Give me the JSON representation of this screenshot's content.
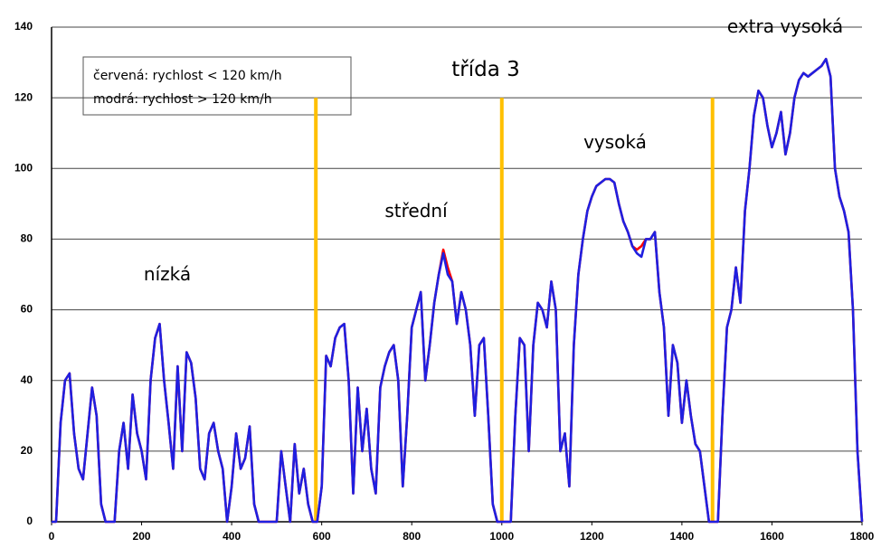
{
  "chart_data": {
    "type": "line",
    "title": "třída 3",
    "legend_lines": [
      "červená: rychlost < 120 km/h",
      "modrá: rychlost > 120 km/h"
    ],
    "phase_labels": [
      "nízká",
      "střední",
      "vysoká",
      "extra vysoká"
    ],
    "phase_lines": {
      "x": [
        587,
        1000,
        1468
      ],
      "top": 120,
      "color": "#ffc000"
    },
    "xlim": [
      0,
      1800
    ],
    "xticks": [
      0,
      200,
      400,
      600,
      800,
      1000,
      1200,
      1400,
      1600,
      1800
    ],
    "ylim": [
      0,
      140
    ],
    "yticks": [
      0,
      20,
      40,
      60,
      80,
      100,
      120,
      140
    ],
    "grid": true,
    "x": [
      0,
      10,
      20,
      30,
      40,
      50,
      60,
      70,
      80,
      90,
      100,
      110,
      120,
      130,
      140,
      150,
      160,
      170,
      180,
      190,
      200,
      210,
      220,
      230,
      240,
      250,
      260,
      270,
      280,
      290,
      300,
      310,
      320,
      330,
      340,
      350,
      360,
      370,
      380,
      390,
      400,
      410,
      420,
      430,
      440,
      450,
      460,
      470,
      480,
      490,
      500,
      510,
      520,
      530,
      540,
      550,
      560,
      570,
      580,
      590,
      600,
      610,
      620,
      630,
      640,
      650,
      660,
      670,
      680,
      690,
      700,
      710,
      720,
      730,
      740,
      750,
      760,
      770,
      780,
      790,
      800,
      810,
      820,
      830,
      840,
      850,
      860,
      870,
      880,
      890,
      900,
      910,
      920,
      930,
      940,
      950,
      960,
      970,
      980,
      990,
      1000,
      1010,
      1020,
      1030,
      1040,
      1050,
      1060,
      1070,
      1080,
      1090,
      1100,
      1110,
      1120,
      1130,
      1140,
      1150,
      1160,
      1170,
      1180,
      1190,
      1200,
      1210,
      1220,
      1230,
      1240,
      1250,
      1260,
      1270,
      1280,
      1290,
      1300,
      1310,
      1320,
      1330,
      1340,
      1350,
      1360,
      1370,
      1380,
      1390,
      1400,
      1410,
      1420,
      1430,
      1440,
      1450,
      1460,
      1470,
      1480,
      1490,
      1500,
      1510,
      1520,
      1530,
      1540,
      1550,
      1560,
      1570,
      1580,
      1590,
      1600,
      1610,
      1620,
      1630,
      1640,
      1650,
      1660,
      1670,
      1680,
      1690,
      1700,
      1710,
      1720,
      1730,
      1740,
      1750,
      1760,
      1770,
      1780,
      1790,
      1800
    ],
    "series": [
      {
        "name": "červená",
        "color": "#ff0000",
        "values": [
          0,
          0,
          28,
          40,
          42,
          25,
          15,
          12,
          25,
          38,
          30,
          5,
          0,
          0,
          0,
          20,
          28,
          15,
          36,
          25,
          20,
          12,
          40,
          52,
          56,
          40,
          28,
          15,
          44,
          20,
          48,
          45,
          35,
          15,
          12,
          25,
          28,
          20,
          15,
          0,
          10,
          25,
          15,
          18,
          27,
          5,
          0,
          0,
          0,
          0,
          0,
          20,
          10,
          0,
          22,
          8,
          15,
          5,
          0,
          0,
          10,
          47,
          44,
          52,
          55,
          56,
          40,
          8,
          38,
          20,
          32,
          15,
          8,
          38,
          44,
          48,
          50,
          40,
          10,
          30,
          55,
          60,
          65,
          40,
          50,
          62,
          70,
          77,
          72,
          68,
          56,
          65,
          60,
          50,
          30,
          50,
          52,
          30,
          5,
          0,
          0,
          0,
          0,
          30,
          52,
          50,
          20,
          50,
          62,
          60,
          55,
          68,
          60,
          20,
          25,
          10,
          50,
          70,
          80,
          88,
          92,
          95,
          96,
          97,
          97,
          96,
          90,
          85,
          82,
          78,
          77,
          78,
          80,
          80,
          82,
          65,
          55,
          30,
          50,
          45,
          28,
          40,
          30,
          22,
          20,
          10,
          0,
          0,
          0,
          30,
          55,
          60,
          72,
          62,
          88,
          100,
          115,
          122,
          120,
          112,
          106,
          110,
          116,
          104,
          110,
          120,
          125,
          127,
          126,
          127,
          128,
          129,
          131,
          126,
          100,
          92,
          88,
          82,
          60,
          20,
          0
        ]
      },
      {
        "name": "modrá",
        "color": "#1f1fe0",
        "values": [
          0,
          0,
          28,
          40,
          42,
          25,
          15,
          12,
          25,
          38,
          30,
          5,
          0,
          0,
          0,
          20,
          28,
          15,
          36,
          25,
          20,
          12,
          40,
          52,
          56,
          40,
          28,
          15,
          44,
          20,
          48,
          45,
          35,
          15,
          12,
          25,
          28,
          20,
          15,
          0,
          10,
          25,
          15,
          18,
          27,
          5,
          0,
          0,
          0,
          0,
          0,
          20,
          10,
          0,
          22,
          8,
          15,
          5,
          0,
          0,
          10,
          47,
          44,
          52,
          55,
          56,
          40,
          8,
          38,
          20,
          32,
          15,
          8,
          38,
          44,
          48,
          50,
          40,
          10,
          30,
          55,
          60,
          65,
          40,
          50,
          62,
          70,
          76,
          70,
          68,
          56,
          65,
          60,
          50,
          30,
          50,
          52,
          30,
          5,
          0,
          0,
          0,
          0,
          30,
          52,
          50,
          20,
          50,
          62,
          60,
          55,
          68,
          60,
          20,
          25,
          10,
          50,
          70,
          80,
          88,
          92,
          95,
          96,
          97,
          97,
          96,
          90,
          85,
          82,
          78,
          76,
          75,
          80,
          80,
          82,
          65,
          55,
          30,
          50,
          45,
          28,
          40,
          30,
          22,
          20,
          10,
          0,
          0,
          0,
          30,
          55,
          60,
          72,
          62,
          88,
          100,
          115,
          122,
          120,
          112,
          106,
          110,
          116,
          104,
          110,
          120,
          125,
          127,
          126,
          127,
          128,
          129,
          131,
          126,
          100,
          92,
          88,
          82,
          60,
          20,
          0
        ]
      }
    ]
  }
}
